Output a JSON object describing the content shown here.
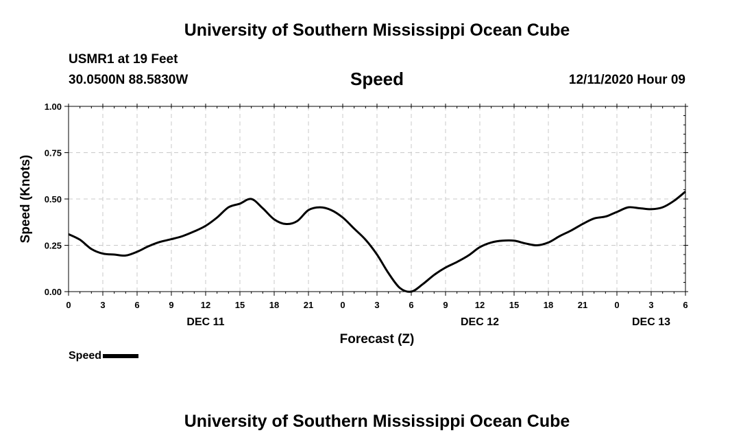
{
  "header": {
    "main_title": "University of Southern Mississippi Ocean Cube",
    "station": "USMR1 at 19 Feet",
    "coords": "30.0500N 88.5830W",
    "timestamp": "12/11/2020 Hour 09"
  },
  "footer": {
    "title": "University of Southern Mississippi Ocean Cube"
  },
  "chart_data": {
    "type": "line",
    "title": "Speed",
    "xlabel": "Forecast (Z)",
    "ylabel": "Speed (Knots)",
    "ylim": [
      0,
      1.0
    ],
    "yticks": [
      "0.00",
      "0.25",
      "0.50",
      "0.75",
      "1.00"
    ],
    "xlim": [
      0,
      54
    ],
    "xticks": [
      "0",
      "3",
      "6",
      "9",
      "12",
      "15",
      "18",
      "21",
      "0",
      "3",
      "6",
      "9",
      "12",
      "15",
      "18",
      "21",
      "0",
      "3",
      "6"
    ],
    "day_labels": [
      {
        "label": "DEC 11",
        "at_hour": 12
      },
      {
        "label": "DEC 12",
        "at_hour": 36
      },
      {
        "label": "DEC 13",
        "at_hour": 51
      }
    ],
    "grid": true,
    "legend": "bottom-left",
    "series": [
      {
        "name": "Speed",
        "color": "#000000",
        "x": [
          0,
          1,
          2,
          3,
          4,
          5,
          6,
          7,
          8,
          9,
          10,
          11,
          12,
          13,
          14,
          15,
          16,
          17,
          18,
          19,
          20,
          21,
          22,
          23,
          24,
          25,
          26,
          27,
          28,
          29,
          30,
          31,
          32,
          33,
          34,
          35,
          36,
          37,
          38,
          39,
          40,
          41,
          42,
          43,
          44,
          45,
          46,
          47,
          48,
          49,
          50,
          51,
          52,
          53,
          54
        ],
        "values": [
          0.31,
          0.28,
          0.23,
          0.205,
          0.2,
          0.195,
          0.215,
          0.245,
          0.268,
          0.283,
          0.3,
          0.325,
          0.355,
          0.4,
          0.455,
          0.475,
          0.5,
          0.45,
          0.39,
          0.365,
          0.38,
          0.44,
          0.455,
          0.44,
          0.4,
          0.34,
          0.28,
          0.2,
          0.1,
          0.02,
          0.0,
          0.04,
          0.09,
          0.13,
          0.16,
          0.195,
          0.24,
          0.265,
          0.275,
          0.275,
          0.26,
          0.25,
          0.265,
          0.3,
          0.33,
          0.365,
          0.395,
          0.405,
          0.43,
          0.455,
          0.45,
          0.445,
          0.455,
          0.49,
          0.54
        ]
      }
    ]
  },
  "legend": {
    "label": "Speed"
  }
}
